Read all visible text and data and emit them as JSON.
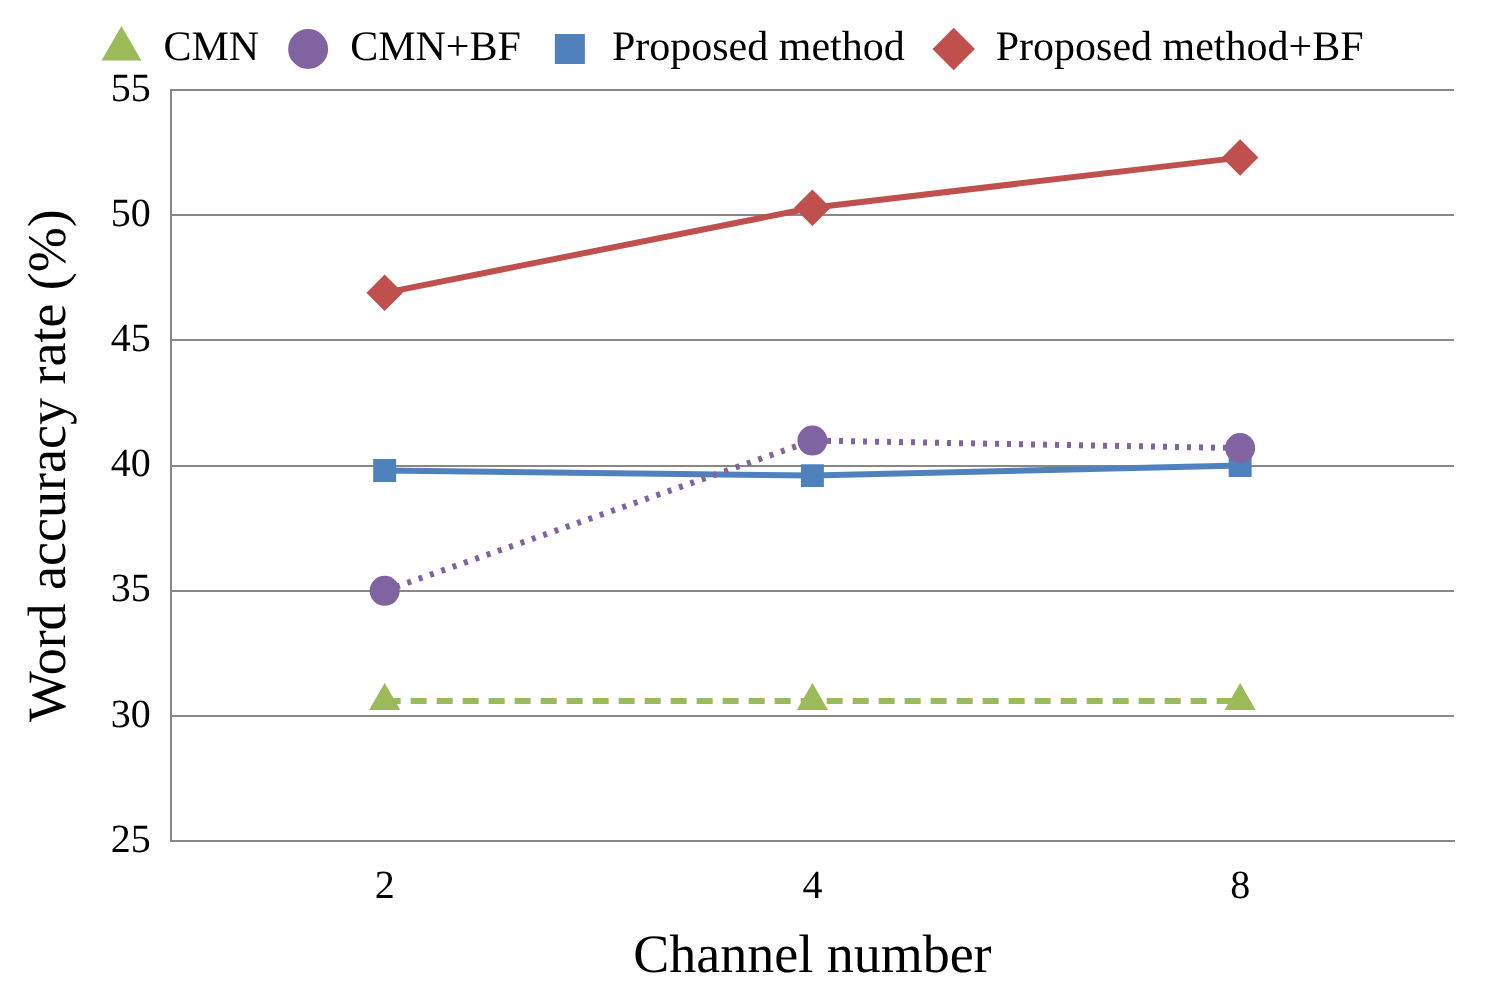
{
  "chart_data": {
    "type": "line",
    "xlabel": "Channel number",
    "ylabel": "Word accuracy rate (%)",
    "categories": [
      "2",
      "4",
      "8"
    ],
    "series": [
      {
        "name": "CMN",
        "color": "#9bbb59",
        "values": [
          30.6,
          30.6,
          30.6
        ],
        "marker": "triangle",
        "line_style": "dashed"
      },
      {
        "name": "CMN+BF",
        "color": "#8064a2",
        "values": [
          35.0,
          41.0,
          40.7
        ],
        "marker": "circle",
        "line_style": "dotted"
      },
      {
        "name": "Proposed method",
        "color": "#4f81bd",
        "values": [
          39.8,
          39.6,
          40.0
        ],
        "marker": "square",
        "line_style": "solid"
      },
      {
        "name": "Proposed method+BF",
        "color": "#c0504d",
        "values": [
          46.9,
          50.3,
          52.3
        ],
        "marker": "diamond",
        "line_style": "solid"
      }
    ],
    "ylim": [
      25,
      55
    ],
    "yticks": [
      25,
      30,
      35,
      40,
      45,
      50,
      55
    ],
    "grid": "y",
    "legend": "top"
  }
}
